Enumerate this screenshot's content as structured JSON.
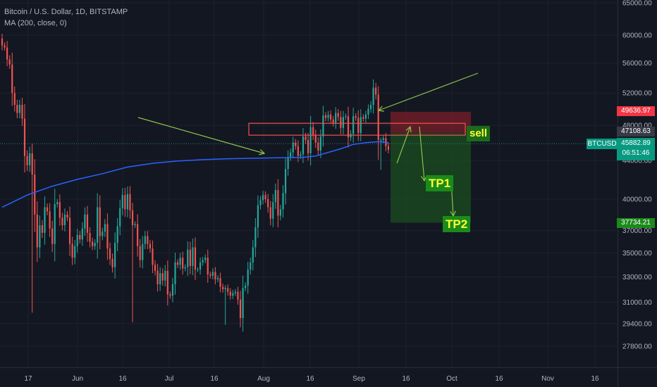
{
  "header": {
    "symbol_line": "Bitcoin / U.S. Dollar, 1D, BITSTAMP",
    "indicator_line": "MA (200, close, 0)"
  },
  "annotations": {
    "sell": "sell",
    "tp1": "TP1",
    "tp2": "TP2"
  },
  "price_tags": {
    "stop": "49636.97",
    "entry": "47108.63",
    "ticker": "BTCUSD",
    "current": "45882.89",
    "countdown": "06:51:46",
    "target": "37734.21"
  },
  "colors": {
    "background": "#131722",
    "up_candle": "#26a69a",
    "down_candle": "#ef5350",
    "ma_line": "#2962ff",
    "annotation_arrow": "#8bc34a",
    "stop_zone": "#7a1f28",
    "target_zone": "#1b4d1f",
    "tag_red": "#f23645",
    "tag_dark": "#363a45",
    "tag_teal": "#089981",
    "tag_green": "#1b8a1b"
  },
  "chart_data": {
    "type": "candlestick",
    "symbol": "BTCUSD",
    "indicator": "MA (200, close, 0)",
    "y_axis": {
      "scale": "log",
      "ticks": [
        65000,
        60000,
        56000,
        52000,
        48000,
        44000,
        40000,
        37000,
        35000,
        33000,
        31000,
        29400,
        27800
      ],
      "tick_labels": [
        "65000.00",
        "60000.00",
        "56000.00",
        "52000.00",
        "48000.00",
        "44000.00",
        "40000.00",
        "37000.00",
        "35000.00",
        "33000.00",
        "31000.00",
        "29400.00",
        "27800.00"
      ]
    },
    "x_axis": {
      "tick_labels": [
        "17",
        "Jun",
        "16",
        "Jul",
        "16",
        "Aug",
        "16",
        "Sep",
        "16",
        "Oct",
        "16",
        "Nov",
        "16"
      ]
    },
    "closes": [
      58500,
      58200,
      56500,
      55800,
      52000,
      50500,
      49500,
      50500,
      48800,
      44500,
      43500,
      44800,
      42500,
      38500,
      35500,
      37500,
      36800,
      39200,
      38800,
      37200,
      35800,
      39500,
      39700,
      38200,
      37500,
      38500,
      38200,
      35800,
      34600,
      35600,
      36600,
      36200,
      37200,
      38500,
      36800,
      36000,
      35600,
      35900,
      39200,
      36500,
      36900,
      37600,
      35400,
      34500,
      33800,
      35900,
      37400,
      39100,
      40400,
      39000,
      40500,
      38900,
      37500,
      37600,
      35600,
      34400,
      35800,
      36500,
      35800,
      35400,
      34000,
      33500,
      32400,
      33300,
      32700,
      33500,
      31600,
      31500,
      32400,
      34200,
      34000,
      34600,
      33700,
      33800,
      35300,
      33900,
      35500,
      33600,
      33600,
      34200,
      34400,
      34600,
      33200,
      33100,
      33400,
      32800,
      32900,
      32200,
      32000,
      32100,
      31800,
      31500,
      31700,
      31800,
      31200,
      29800,
      32100,
      32300,
      33600,
      34200,
      35500,
      37300,
      39400,
      39900,
      40400,
      40000,
      39200,
      38100,
      39700,
      40900,
      38400,
      39000,
      40600,
      43100,
      44400,
      44900,
      46000,
      45600,
      44500,
      44700,
      46700,
      46300,
      44800,
      47800,
      46900,
      46000,
      45100,
      46700,
      49200,
      48900,
      49300,
      48700,
      48300,
      49500,
      49000,
      47700,
      49000,
      49100,
      46600,
      47000,
      49100,
      48900,
      47100,
      49000,
      48800,
      49300,
      50000,
      50500,
      52700,
      51800,
      46300,
      46300,
      46500,
      45600,
      45200
    ],
    "moving_average_200": [
      [
        0,
        39200
      ],
      [
        10,
        40400
      ],
      [
        20,
        41300
      ],
      [
        30,
        42000
      ],
      [
        40,
        42600
      ],
      [
        50,
        43300
      ],
      [
        60,
        43700
      ],
      [
        70,
        43950
      ],
      [
        80,
        44100
      ],
      [
        90,
        44200
      ],
      [
        100,
        44250
      ],
      [
        110,
        44300
      ],
      [
        120,
        44350
      ],
      [
        125,
        44500
      ],
      [
        130,
        44900
      ],
      [
        135,
        45300
      ],
      [
        140,
        45800
      ],
      [
        145,
        46000
      ],
      [
        150,
        46100
      ],
      [
        154,
        46000
      ]
    ],
    "levels": {
      "stop_loss": 49636.97,
      "entry": 47108.63,
      "current": 45882.89,
      "take_profit": 37734.21
    },
    "resistance_zone": [
      46850,
      48250
    ],
    "tp1_level": 41000,
    "tp2_level": 38100
  }
}
